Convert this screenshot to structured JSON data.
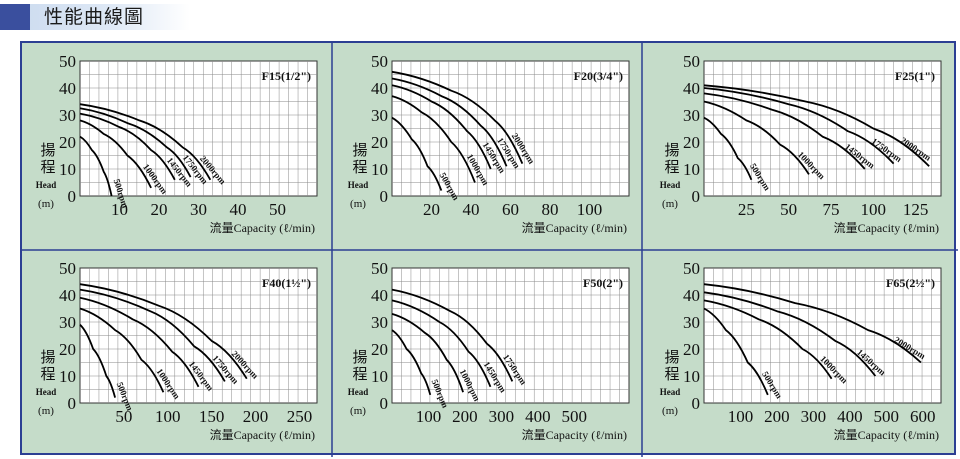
{
  "header": {
    "title": "性能曲線圖",
    "accent_color": "#3a4f9e"
  },
  "colors": {
    "panel_bg": "#c5dcc9",
    "grid_line": "#8a8a8a",
    "border": "#2c3f93",
    "curve": "#000000"
  },
  "chart_data": [
    {
      "type": "line",
      "title": "F15(1/2\")",
      "ylabel": [
        "揚",
        "程"
      ],
      "y_unit": [
        "Head",
        "(m)"
      ],
      "xlabel": "流量Capacity (ℓ/min)",
      "xlim": [
        0,
        60
      ],
      "ylim": [
        0,
        50
      ],
      "xticks": [
        10,
        20,
        30,
        40,
        50
      ],
      "yticks": [
        0,
        10,
        20,
        30,
        40,
        50
      ],
      "series": [
        {
          "name": "500rpm",
          "x": [
            0,
            3,
            6,
            8
          ],
          "y": [
            22,
            17,
            9,
            0
          ]
        },
        {
          "name": "1000rpm",
          "x": [
            0,
            6,
            12,
            18
          ],
          "y": [
            28,
            23,
            15,
            3
          ]
        },
        {
          "name": "1450rpm",
          "x": [
            0,
            10,
            18,
            24
          ],
          "y": [
            30.5,
            25.5,
            17,
            6
          ]
        },
        {
          "name": "1750rpm",
          "x": [
            0,
            12,
            22,
            28
          ],
          "y": [
            32.5,
            27,
            18,
            7
          ]
        },
        {
          "name": "2000rpm",
          "x": [
            0,
            15,
            26,
            33
          ],
          "y": [
            34,
            28,
            18,
            6
          ]
        }
      ]
    },
    {
      "type": "line",
      "title": "F20(3/4\")",
      "ylabel": [
        "揚",
        "程"
      ],
      "y_unit": [
        "Head",
        "(m)"
      ],
      "xlabel": "流量Capacity (ℓ/min)",
      "xlim": [
        0,
        120
      ],
      "ylim": [
        0,
        50
      ],
      "xticks": [
        20,
        40,
        60,
        80,
        100
      ],
      "yticks": [
        0,
        10,
        20,
        30,
        40,
        50
      ],
      "series": [
        {
          "name": "500rpm",
          "x": [
            0,
            10,
            18,
            25
          ],
          "y": [
            29,
            21,
            11,
            2
          ]
        },
        {
          "name": "1000rpm",
          "x": [
            0,
            15,
            30,
            42
          ],
          "y": [
            37,
            31,
            20,
            5
          ]
        },
        {
          "name": "1450rpm",
          "x": [
            0,
            20,
            38,
            50
          ],
          "y": [
            41,
            35,
            24,
            10
          ]
        },
        {
          "name": "1750rpm",
          "x": [
            0,
            25,
            45,
            58
          ],
          "y": [
            43.5,
            37,
            26,
            11
          ]
        },
        {
          "name": "2000rpm",
          "x": [
            0,
            30,
            52,
            66
          ],
          "y": [
            46,
            39,
            28,
            12
          ]
        }
      ]
    },
    {
      "type": "line",
      "title": "F25(1\")",
      "ylabel": [
        "揚",
        "程"
      ],
      "y_unit": [
        "Head",
        "(m)"
      ],
      "xlabel": "流量Capacity (ℓ/min)",
      "xlim": [
        0,
        140
      ],
      "ylim": [
        0,
        50
      ],
      "xticks": [
        25,
        50,
        75,
        100,
        125
      ],
      "yticks": [
        0,
        10,
        20,
        30,
        40,
        50
      ],
      "series": [
        {
          "name": "500rpm",
          "x": [
            0,
            10,
            20,
            28
          ],
          "y": [
            29,
            23,
            14,
            6
          ]
        },
        {
          "name": "1000rpm",
          "x": [
            0,
            25,
            45,
            62
          ],
          "y": [
            35,
            28,
            19,
            8
          ]
        },
        {
          "name": "1450rpm",
          "x": [
            0,
            40,
            70,
            95
          ],
          "y": [
            38,
            32,
            22,
            10
          ]
        },
        {
          "name": "1750rpm",
          "x": [
            0,
            50,
            85,
            112
          ],
          "y": [
            40,
            34,
            24,
            12
          ]
        },
        {
          "name": "2000rpm",
          "x": [
            0,
            60,
            100,
            133
          ],
          "y": [
            41,
            35,
            25,
            11
          ]
        }
      ]
    },
    {
      "type": "line",
      "title": "F40(1½\")",
      "ylabel": [
        "揚",
        "程"
      ],
      "y_unit": [
        "Head",
        "(m)"
      ],
      "xlabel": "流量Capacity (ℓ/min)",
      "xlim": [
        0,
        270
      ],
      "ylim": [
        0,
        50
      ],
      "xticks": [
        50,
        100,
        150,
        200,
        250
      ],
      "yticks": [
        0,
        10,
        20,
        30,
        40,
        50
      ],
      "series": [
        {
          "name": "500rpm",
          "x": [
            0,
            15,
            30,
            40
          ],
          "y": [
            29,
            20,
            10,
            2
          ]
        },
        {
          "name": "1000rpm",
          "x": [
            0,
            40,
            70,
            95
          ],
          "y": [
            35,
            27,
            16,
            4
          ]
        },
        {
          "name": "1450rpm",
          "x": [
            0,
            60,
            105,
            135
          ],
          "y": [
            39,
            31,
            19,
            6
          ]
        },
        {
          "name": "1750rpm",
          "x": [
            0,
            80,
            130,
            165
          ],
          "y": [
            42,
            34,
            21,
            8
          ]
        },
        {
          "name": "2000rpm",
          "x": [
            0,
            90,
            150,
            190
          ],
          "y": [
            44,
            36,
            23,
            9
          ]
        }
      ]
    },
    {
      "type": "line",
      "title": "F50(2\")",
      "ylabel": [
        "揚",
        "程"
      ],
      "y_unit": [
        "Head",
        "(m)"
      ],
      "xlabel": "流量Capacity (ℓ/min)",
      "xlim": [
        0,
        650
      ],
      "ylim": [
        0,
        50
      ],
      "xticks": [
        100,
        200,
        300,
        400,
        500
      ],
      "yticks": [
        0,
        10,
        20,
        30,
        40,
        50
      ],
      "series": [
        {
          "name": "500rpm",
          "x": [
            0,
            40,
            80,
            105
          ],
          "y": [
            27,
            20,
            11,
            3
          ]
        },
        {
          "name": "1000rpm",
          "x": [
            0,
            90,
            150,
            195
          ],
          "y": [
            33,
            26,
            16,
            4
          ]
        },
        {
          "name": "1450rpm",
          "x": [
            0,
            130,
            210,
            270
          ],
          "y": [
            38,
            30,
            19,
            6
          ]
        },
        {
          "name": "1750rpm",
          "x": [
            0,
            160,
            260,
            330
          ],
          "y": [
            42,
            34,
            22,
            8
          ]
        }
      ]
    },
    {
      "type": "line",
      "title": "F65(2½\")",
      "ylabel": [
        "揚",
        "程"
      ],
      "y_unit": [
        "Head",
        "(m)"
      ],
      "xlabel": "流量Capacity (ℓ/min)",
      "xlim": [
        0,
        650
      ],
      "ylim": [
        0,
        50
      ],
      "xticks": [
        100,
        200,
        300,
        400,
        500,
        600
      ],
      "yticks": [
        0,
        10,
        20,
        30,
        40,
        50
      ],
      "series": [
        {
          "name": "500rpm",
          "x": [
            0,
            60,
            120,
            175
          ],
          "y": [
            35,
            27,
            15,
            3
          ]
        },
        {
          "name": "1000rpm",
          "x": [
            0,
            150,
            270,
            350
          ],
          "y": [
            38,
            31,
            20,
            9
          ]
        },
        {
          "name": "1450rpm",
          "x": [
            0,
            200,
            360,
            470
          ],
          "y": [
            41,
            34,
            23,
            10
          ]
        },
        {
          "name": "2000rpm",
          "x": [
            0,
            250,
            450,
            595
          ],
          "y": [
            44,
            37,
            27,
            15
          ]
        }
      ]
    }
  ]
}
